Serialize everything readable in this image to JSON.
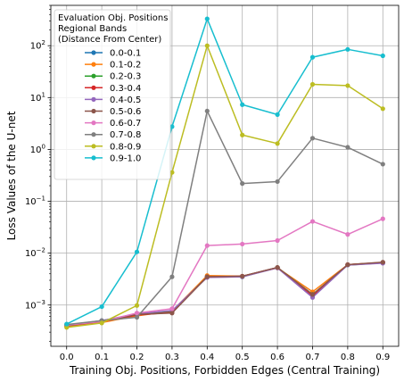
{
  "chart_data": {
    "type": "line",
    "xlabel": "Training Obj. Positions, Forbidden Edges (Central Training)",
    "ylabel": "Loss Values of the U-net",
    "x": [
      0.0,
      0.1,
      0.2,
      0.3,
      0.4,
      0.5,
      0.6,
      0.7,
      0.8,
      0.9
    ],
    "x_tick_labels": [
      "0.0",
      "0.1",
      "0.2",
      "0.3",
      "0.4",
      "0.5",
      "0.6",
      "0.7",
      "0.8",
      "0.9"
    ],
    "xlim": [
      -0.045,
      0.945
    ],
    "yscale": "log",
    "ylim": [
      0.00016,
      600
    ],
    "y_ticks": [
      0.001,
      0.01,
      0.1,
      1,
      10,
      100
    ],
    "y_tick_labels": [
      {
        "base": "10",
        "exp": "−3"
      },
      {
        "base": "10",
        "exp": "−2"
      },
      {
        "base": "10",
        "exp": "−1"
      },
      {
        "base": "10",
        "exp": "0"
      },
      {
        "base": "10",
        "exp": "1"
      },
      {
        "base": "10",
        "exp": "2"
      }
    ],
    "grid": true,
    "legend": {
      "placement": "top-left",
      "title_lines": [
        "Evaluation Obj. Positions",
        "Regional Bands",
        "(Distance From Center)"
      ]
    },
    "series": [
      {
        "name": "0.0-0.1",
        "color": "#1f77b4",
        "values": [
          0.0004,
          0.0005,
          0.00065,
          0.00075,
          0.0035,
          0.0036,
          0.0053,
          0.0015,
          0.006,
          0.0065
        ]
      },
      {
        "name": "0.1-0.2",
        "color": "#ff7f0e",
        "values": [
          0.00039,
          0.00046,
          0.00062,
          0.00076,
          0.0037,
          0.0036,
          0.0052,
          0.0018,
          0.006,
          0.0066
        ]
      },
      {
        "name": "0.2-0.3",
        "color": "#2ca02c",
        "values": [
          0.00041,
          0.00049,
          0.00066,
          0.00074,
          0.0035,
          0.0035,
          0.0053,
          0.0016,
          0.0059,
          0.0065
        ]
      },
      {
        "name": "0.3-0.4",
        "color": "#d62728",
        "values": [
          0.0004,
          0.00048,
          0.00064,
          0.00072,
          0.0035,
          0.0036,
          0.0053,
          0.0015,
          0.006,
          0.0066
        ]
      },
      {
        "name": "0.4-0.5",
        "color": "#9467bd",
        "values": [
          0.00041,
          0.0005,
          0.00068,
          0.00078,
          0.0034,
          0.0035,
          0.0052,
          0.0014,
          0.0059,
          0.0064
        ]
      },
      {
        "name": "0.5-0.6",
        "color": "#8c564b",
        "values": [
          0.0004,
          0.00049,
          0.00066,
          0.0007,
          0.0035,
          0.0036,
          0.0053,
          0.0016,
          0.006,
          0.0067
        ]
      },
      {
        "name": "0.6-0.7",
        "color": "#e377c2",
        "values": [
          0.00041,
          0.00048,
          0.0007,
          0.00085,
          0.014,
          0.015,
          0.0175,
          0.041,
          0.023,
          0.046
        ]
      },
      {
        "name": "0.7-0.8",
        "color": "#7f7f7f",
        "values": [
          0.00042,
          0.0005,
          0.00058,
          0.0035,
          5.5,
          0.22,
          0.24,
          1.65,
          1.1,
          0.52
        ]
      },
      {
        "name": "0.8-0.9",
        "color": "#bcbd22",
        "values": [
          0.00037,
          0.00045,
          0.00098,
          0.36,
          100,
          1.9,
          1.3,
          18,
          17,
          6.1
        ]
      },
      {
        "name": "0.9-1.0",
        "color": "#17becf",
        "values": [
          0.00043,
          0.00093,
          0.0106,
          2.75,
          330,
          7.3,
          4.7,
          60,
          85,
          64
        ]
      }
    ]
  }
}
